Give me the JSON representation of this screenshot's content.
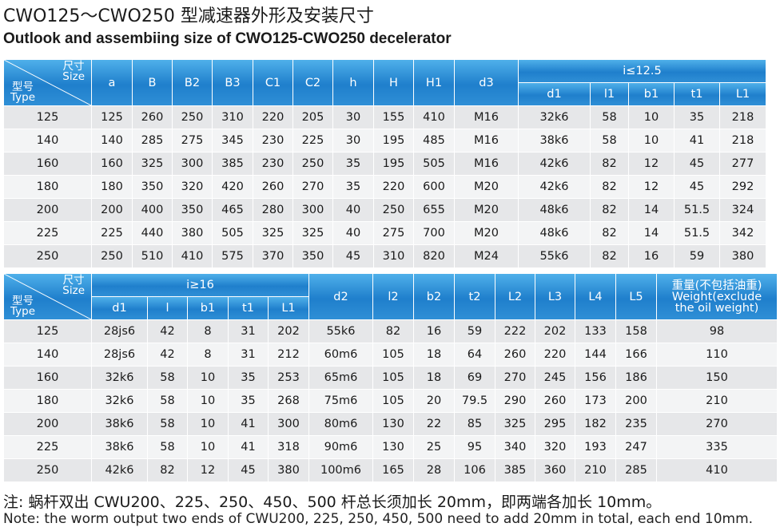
{
  "title_cn": "CWO125～CWO250 型减速器外形及安装尺寸",
  "title_en": "Outlook and assembiing size of CWO125-CWO250  decelerator",
  "corner": {
    "size_cn": "尺寸",
    "size_en": "Size",
    "type_cn": "型号",
    "type_en": "Type"
  },
  "table1": {
    "headers": [
      "a",
      "B",
      "B2",
      "B3",
      "C1",
      "C2",
      "h",
      "H",
      "H1",
      "d3"
    ],
    "group_label": "i≤12.5",
    "group_headers": [
      "d1",
      "l1",
      "b1",
      "t1",
      "L1"
    ],
    "rows": [
      [
        "125",
        "125",
        "260",
        "250",
        "310",
        "220",
        "205",
        "30",
        "155",
        "410",
        "M16",
        "32k6",
        "58",
        "10",
        "35",
        "218"
      ],
      [
        "140",
        "140",
        "285",
        "275",
        "345",
        "230",
        "225",
        "30",
        "195",
        "485",
        "M16",
        "38k6",
        "58",
        "10",
        "41",
        "218"
      ],
      [
        "160",
        "160",
        "325",
        "300",
        "385",
        "230",
        "250",
        "35",
        "195",
        "505",
        "M16",
        "42k6",
        "82",
        "12",
        "45",
        "277"
      ],
      [
        "180",
        "180",
        "350",
        "320",
        "420",
        "260",
        "270",
        "35",
        "220",
        "600",
        "M20",
        "42k6",
        "82",
        "12",
        "45",
        "292"
      ],
      [
        "200",
        "200",
        "400",
        "350",
        "465",
        "280",
        "300",
        "40",
        "250",
        "655",
        "M20",
        "48k6",
        "82",
        "14",
        "51.5",
        "324"
      ],
      [
        "225",
        "225",
        "440",
        "380",
        "505",
        "325",
        "325",
        "40",
        "275",
        "700",
        "M20",
        "48k6",
        "82",
        "14",
        "51.5",
        "342"
      ],
      [
        "250",
        "250",
        "510",
        "410",
        "575",
        "370",
        "350",
        "45",
        "310",
        "820",
        "M24",
        "55k6",
        "82",
        "16",
        "59",
        "380"
      ]
    ]
  },
  "table2": {
    "group_label": "i≥16",
    "group_headers": [
      "d1",
      "l",
      "b1",
      "t1",
      "L1"
    ],
    "headers": [
      "d2",
      "l2",
      "b2",
      "t2",
      "L2",
      "L3",
      "L4",
      "L5"
    ],
    "weight_cn": "重量(不包括油重)",
    "weight_en_1": "Weight(exclude",
    "weight_en_2": "the oil weight)",
    "rows": [
      [
        "125",
        "28js6",
        "42",
        "8",
        "31",
        "202",
        "55k6",
        "82",
        "16",
        "59",
        "222",
        "202",
        "133",
        "158",
        "98"
      ],
      [
        "140",
        "28js6",
        "42",
        "8",
        "31",
        "212",
        "60m6",
        "105",
        "18",
        "64",
        "260",
        "220",
        "144",
        "166",
        "110"
      ],
      [
        "160",
        "32k6",
        "58",
        "10",
        "35",
        "253",
        "65m6",
        "105",
        "18",
        "69",
        "270",
        "245",
        "156",
        "186",
        "150"
      ],
      [
        "180",
        "32k6",
        "58",
        "10",
        "35",
        "268",
        "75m6",
        "105",
        "20",
        "79.5",
        "290",
        "260",
        "173",
        "200",
        "210"
      ],
      [
        "200",
        "38k6",
        "58",
        "10",
        "41",
        "300",
        "80m6",
        "130",
        "22",
        "85",
        "325",
        "295",
        "182",
        "235",
        "270"
      ],
      [
        "225",
        "38k6",
        "58",
        "10",
        "41",
        "318",
        "90m6",
        "130",
        "25",
        "95",
        "340",
        "320",
        "193",
        "247",
        "335"
      ],
      [
        "250",
        "42k6",
        "82",
        "12",
        "45",
        "380",
        "100m6",
        "165",
        "28",
        "106",
        "385",
        "360",
        "210",
        "285",
        "410"
      ]
    ]
  },
  "note_cn": "注:  蜗杆双出 CWU200、225、250、450、500 杆总长须加长 20mm，即两端各加长 10mm。",
  "note_en": "Note: the worm output two ends of CWU200, 225, 250, 450, 500 need to add 20mm in total, each end 10mm."
}
